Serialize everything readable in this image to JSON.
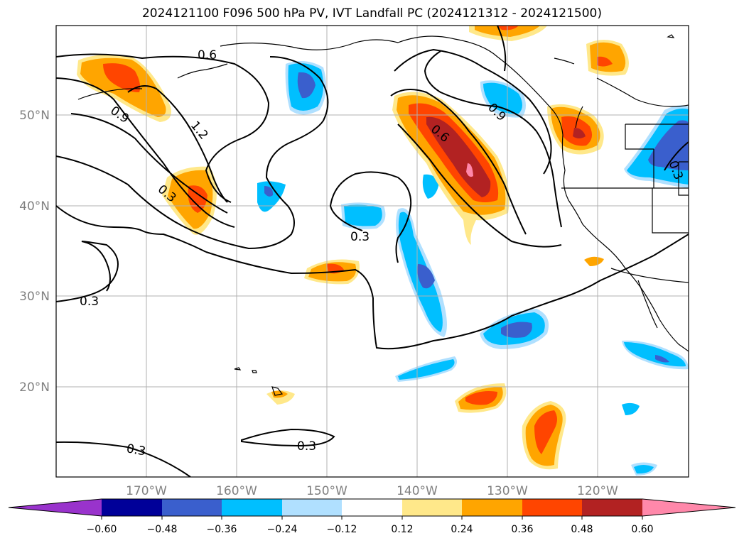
{
  "title": "2024121100 F096 500 hPa PV, IVT Landfall PC (2024121312 - 2024121500)",
  "lat_labels": [
    "50°N",
    "40°N",
    "30°N",
    "20°N"
  ],
  "lon_labels": [
    "170°W",
    "160°W",
    "150°W",
    "140°W",
    "130°W",
    "120°W"
  ],
  "contour_labels": [
    "0.6",
    "0.9",
    "1.2",
    "0.3",
    "0.6",
    "0.9",
    "0.3",
    "0.3",
    "0.3",
    "0.3",
    "0.3"
  ],
  "colorbar": {
    "ticks": [
      "−0.60",
      "−0.48",
      "−0.36",
      "−0.24",
      "−0.12",
      "0.12",
      "0.24",
      "0.36",
      "0.48",
      "0.60"
    ],
    "colors": [
      "#9933cc",
      "#000099",
      "#3a5fcd",
      "#00bfff",
      "#b0e0ff",
      "#ffffff",
      "#ffe88a",
      "#ffa500",
      "#ff4500",
      "#b22222",
      "#ff88aa"
    ]
  }
}
